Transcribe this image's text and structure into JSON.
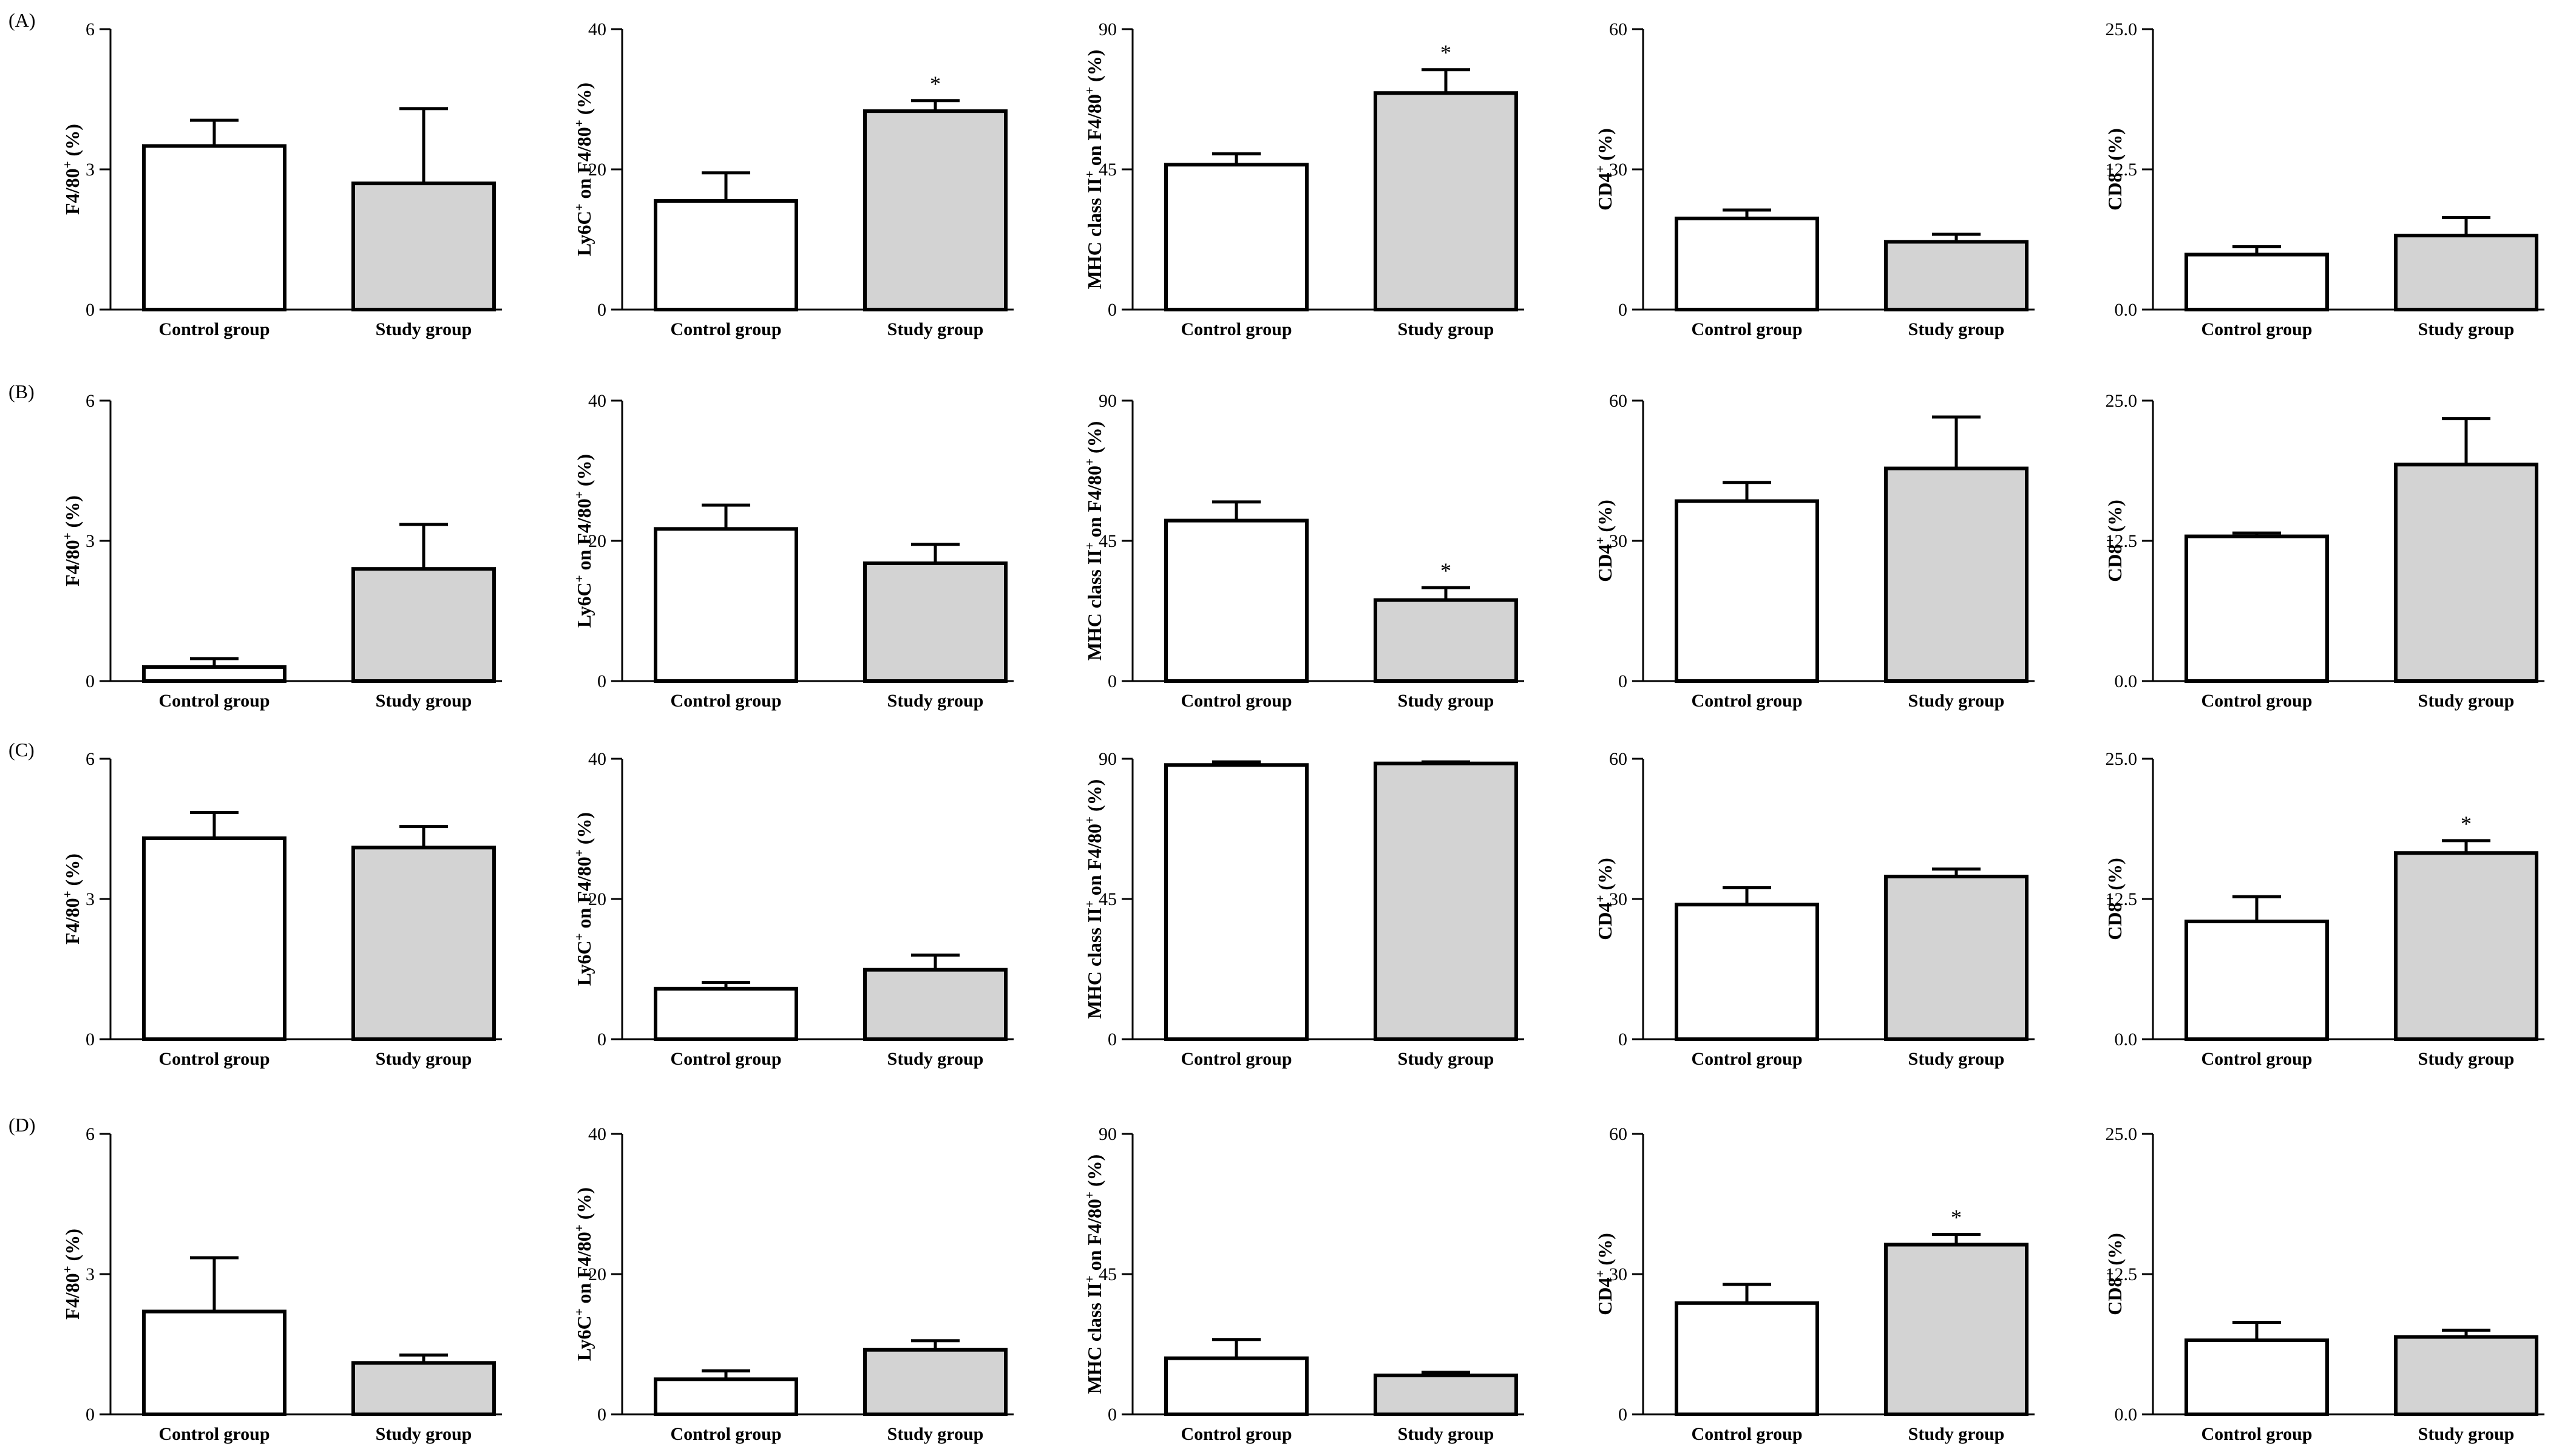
{
  "chart_data": {
    "type": "bar",
    "categories": [
      "Control group",
      "Study group"
    ],
    "colors": {
      "control": "#ffffff",
      "study": "#d3d3d3"
    },
    "rows": [
      "(A)",
      "(B)",
      "(C)",
      "(D)"
    ],
    "panels": [
      {
        "id": "f480",
        "ylabel_parts": [
          {
            "t": "F4/80"
          },
          {
            "t": "+",
            "sup": true
          },
          {
            "t": " (%)"
          }
        ],
        "ylim": [
          0,
          6
        ],
        "ticks": [
          "0",
          "3",
          "6"
        ],
        "tick_values": [
          0,
          3,
          6
        ]
      },
      {
        "id": "ly6c",
        "ylabel_parts": [
          {
            "t": "Ly6C"
          },
          {
            "t": "+",
            "sup": true
          },
          {
            "t": " on F4/80"
          },
          {
            "t": "+",
            "sup": true
          },
          {
            "t": " (%)"
          }
        ],
        "ylim": [
          0,
          40
        ],
        "ticks": [
          "0",
          "20",
          "40"
        ],
        "tick_values": [
          0,
          20,
          40
        ]
      },
      {
        "id": "mhc",
        "ylabel_parts": [
          {
            "t": "MHC class II"
          },
          {
            "t": "+",
            "sup": true
          },
          {
            "t": " on F4/80"
          },
          {
            "t": "+",
            "sup": true
          },
          {
            "t": " (%)"
          }
        ],
        "ylim": [
          0,
          90
        ],
        "ticks": [
          "0",
          "45",
          "90"
        ],
        "tick_values": [
          0,
          45,
          90
        ]
      },
      {
        "id": "cd4",
        "ylabel_parts": [
          {
            "t": "CD4"
          },
          {
            "t": "+",
            "sup": true
          },
          {
            "t": " (%)"
          }
        ],
        "ylim": [
          0,
          60
        ],
        "ticks": [
          "0",
          "30",
          "60"
        ],
        "tick_values": [
          0,
          30,
          60
        ]
      },
      {
        "id": "cd8",
        "ylabel_parts": [
          {
            "t": "CD8"
          },
          {
            "t": "+",
            "sup": true
          },
          {
            "t": " (%)"
          }
        ],
        "ylim": [
          0,
          25
        ],
        "ticks": [
          "0.0",
          "12.5",
          "25.0"
        ],
        "tick_values": [
          0,
          12.5,
          25
        ]
      }
    ],
    "values": [
      [
        {
          "control": [
            3.5,
            0.55
          ],
          "study": [
            2.7,
            1.6
          ],
          "sig": ""
        },
        {
          "control": [
            15.5,
            4.0
          ],
          "study": [
            28.3,
            1.5
          ],
          "sig": "*"
        },
        {
          "control": [
            46.5,
            3.5
          ],
          "study": [
            69.5,
            7.5
          ],
          "sig": "*"
        },
        {
          "control": [
            19.5,
            1.8
          ],
          "study": [
            14.5,
            1.6
          ],
          "sig": ""
        },
        {
          "control": [
            4.9,
            0.7
          ],
          "study": [
            6.6,
            1.6
          ],
          "sig": ""
        }
      ],
      [
        {
          "control": [
            0.3,
            0.18
          ],
          "study": [
            2.4,
            0.95
          ],
          "sig": ""
        },
        {
          "control": [
            21.7,
            3.4
          ],
          "study": [
            16.8,
            2.7
          ],
          "sig": ""
        },
        {
          "control": [
            51.5,
            6.0
          ],
          "study": [
            26.0,
            4.0
          ],
          "sig": "*"
        },
        {
          "control": [
            38.5,
            4.0
          ],
          "study": [
            45.5,
            11.0
          ],
          "sig": ""
        },
        {
          "control": [
            12.9,
            0.3
          ],
          "study": [
            19.3,
            4.1
          ],
          "sig": ""
        }
      ],
      [
        {
          "control": [
            4.3,
            0.55
          ],
          "study": [
            4.1,
            0.45
          ],
          "sig": ""
        },
        {
          "control": [
            7.2,
            0.9
          ],
          "study": [
            9.9,
            2.1
          ],
          "sig": ""
        },
        {
          "control": [
            88.0,
            1.0
          ],
          "study": [
            88.5,
            0.5
          ],
          "sig": ""
        },
        {
          "control": [
            28.8,
            3.6
          ],
          "study": [
            34.8,
            1.6
          ],
          "sig": ""
        },
        {
          "control": [
            10.5,
            2.2
          ],
          "study": [
            16.6,
            1.1
          ],
          "sig": "*"
        }
      ],
      [
        {
          "control": [
            2.2,
            1.15
          ],
          "study": [
            1.1,
            0.17
          ],
          "sig": ""
        },
        {
          "control": [
            5.0,
            1.2
          ],
          "study": [
            9.2,
            1.3
          ],
          "sig": ""
        },
        {
          "control": [
            18.0,
            6.0
          ],
          "study": [
            12.5,
            1.0
          ],
          "sig": ""
        },
        {
          "control": [
            23.8,
            4.0
          ],
          "study": [
            36.3,
            2.2
          ],
          "sig": "*"
        },
        {
          "control": [
            6.6,
            1.6
          ],
          "study": [
            6.9,
            0.6
          ],
          "sig": ""
        }
      ]
    ]
  }
}
